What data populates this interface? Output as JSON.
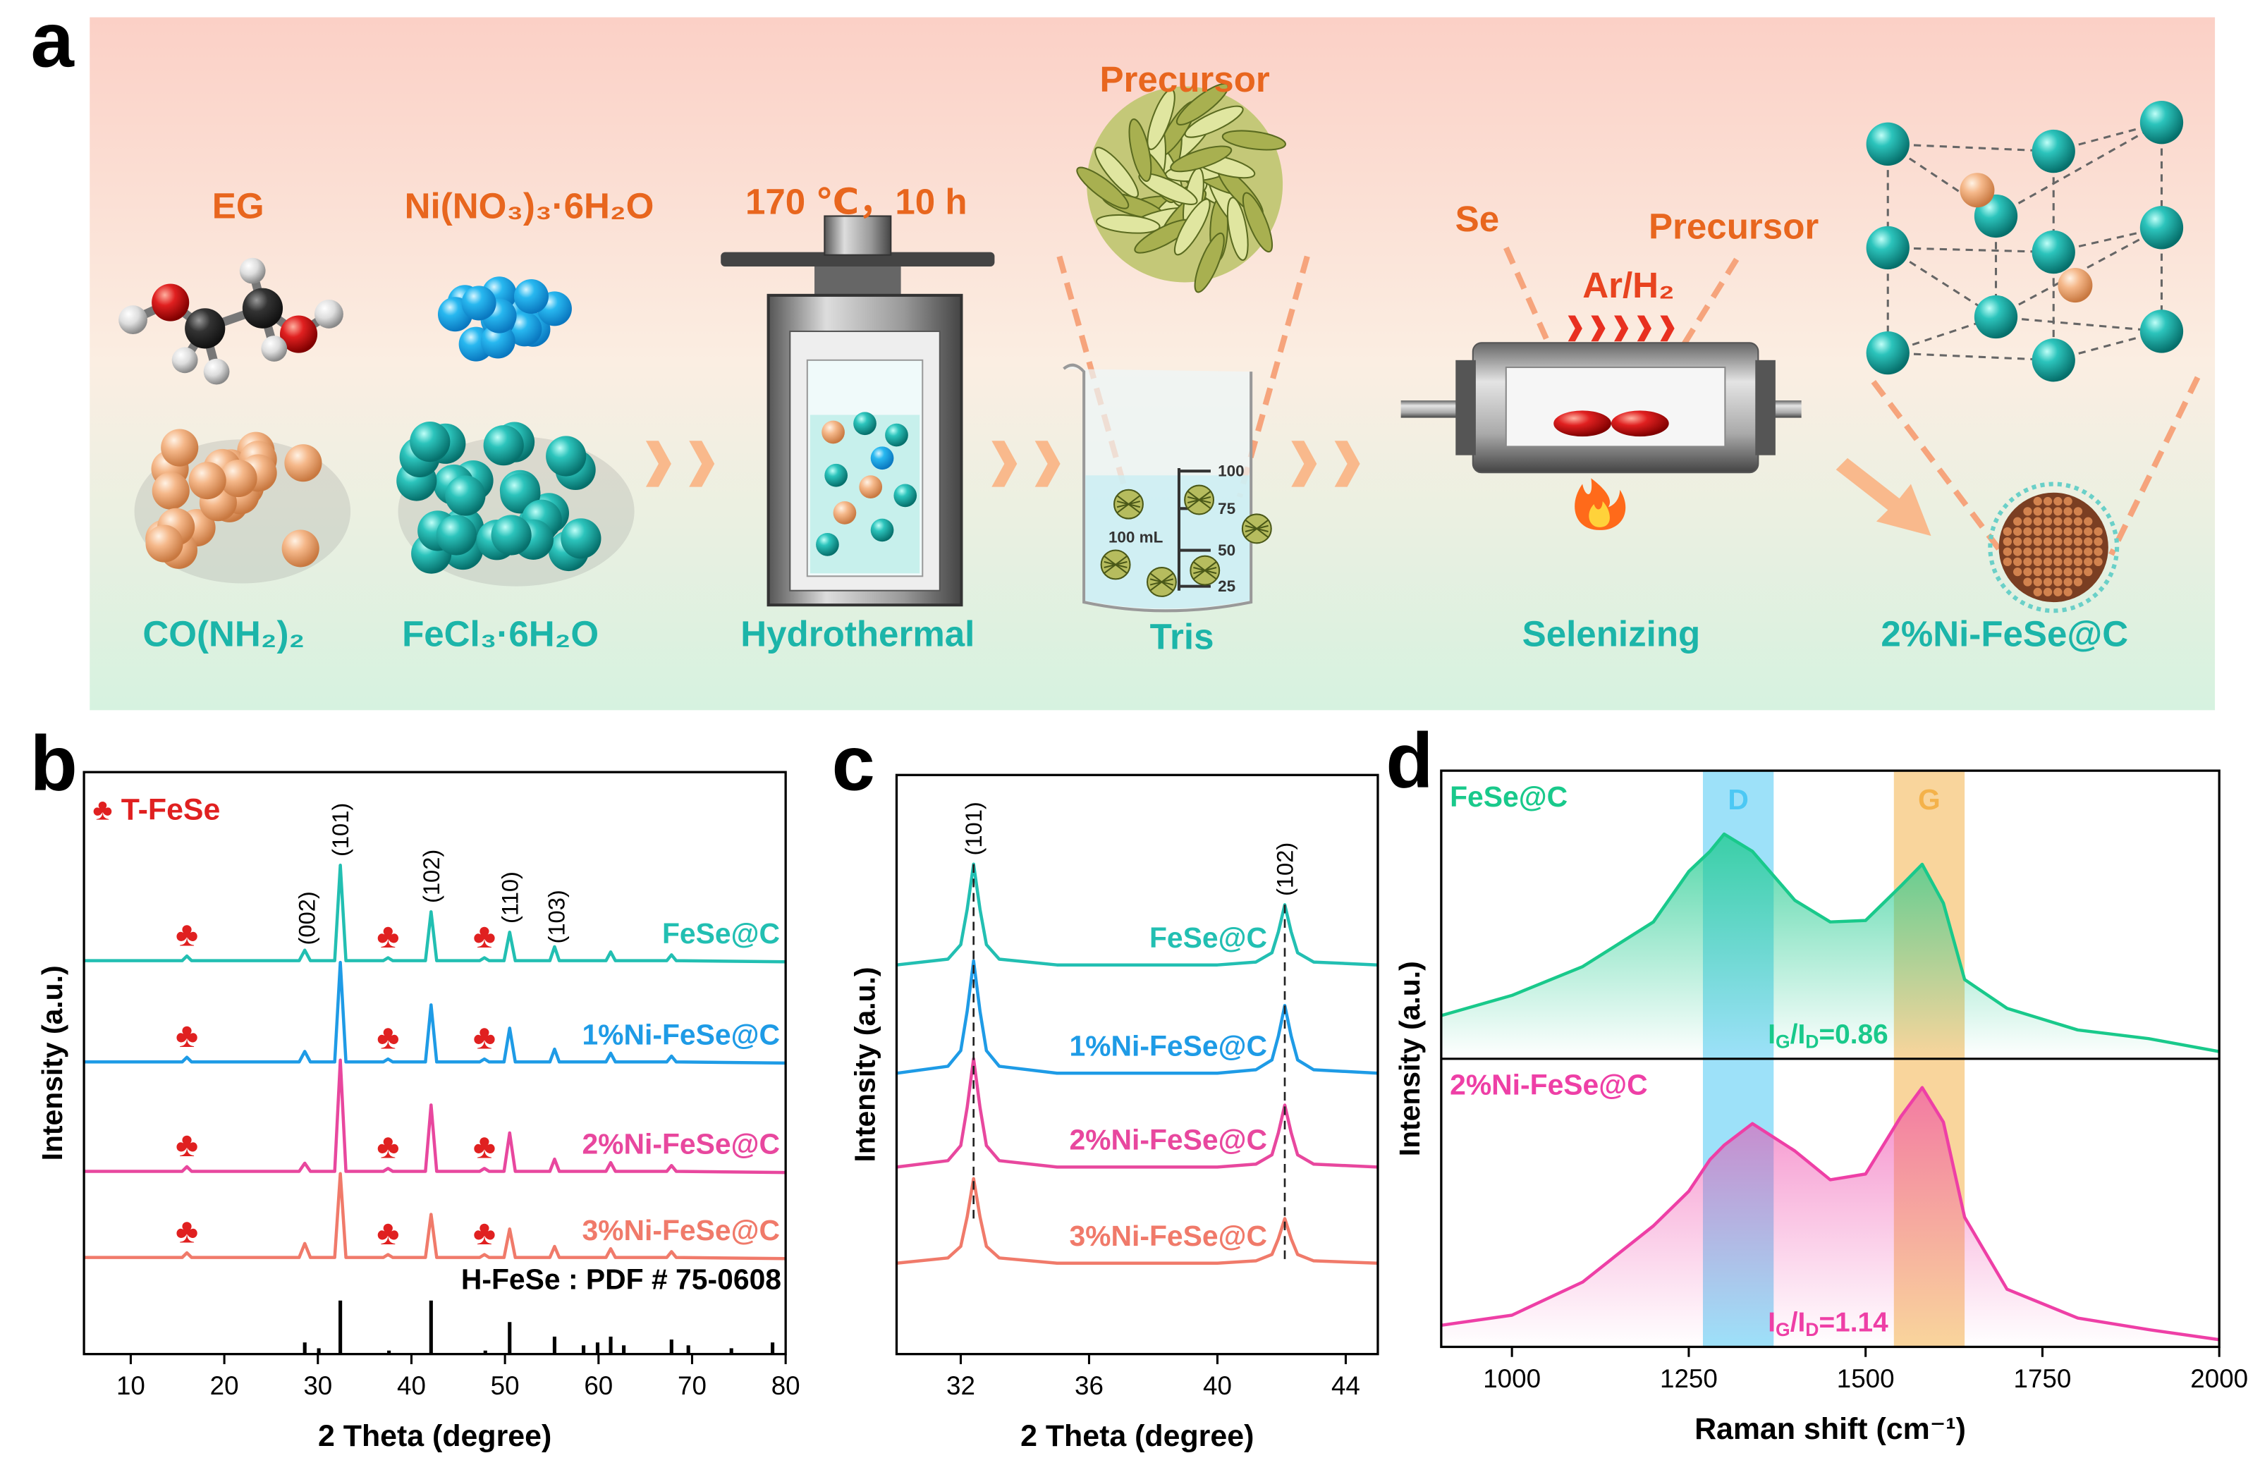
{
  "panels": [
    "a",
    "b",
    "c",
    "d"
  ],
  "scheme": {
    "eg": "EG",
    "nitrate": "Ni(NO₃)₃·6H₂O",
    "condition": "170 ℃，10 h",
    "precursor_top": "Precursor",
    "se": "Se",
    "precursor_right": "Precursor",
    "gas": "Ar/H₂",
    "urea": "CO(NH₂)₂",
    "ferric": "FeCl₃·6H₂O",
    "step1": "Hydrothermal",
    "step2": "Tris",
    "step3": "Selenizing",
    "product": "2%Ni-FeSe@C",
    "beaker_volume": "100 mL",
    "beaker_marks": [
      "100",
      "75",
      "50",
      "25"
    ]
  },
  "chart_data": [
    {
      "type": "line",
      "xlabel": "2 Theta (degree)",
      "ylabel": "Intensity (a.u.)",
      "xlim": [
        5,
        80
      ],
      "xticks": [
        10,
        20,
        30,
        40,
        50,
        60,
        70,
        80
      ],
      "ylim": [
        0,
        100
      ],
      "legend": {
        "symbol": "♣",
        "label": "T-FeSe",
        "x": [
          16,
          37.5,
          47.8
        ]
      },
      "x": [
        5,
        15.5,
        16,
        16.5,
        28,
        28.6,
        29.2,
        31.8,
        32.4,
        33,
        37,
        37.5,
        38,
        41.5,
        42.1,
        42.7,
        47.3,
        47.8,
        48.3,
        49.9,
        50.5,
        51.1,
        54.8,
        55.3,
        55.8,
        60.8,
        61.3,
        61.8,
        67.3,
        67.8,
        68.3,
        80
      ],
      "series": [
        {
          "name": "FeSe@C",
          "color": "#22bfb2",
          "values": [
            67.6,
            67.6,
            68.4,
            67.6,
            67.6,
            69.4,
            67.6,
            67.6,
            84,
            67.6,
            67.6,
            68.1,
            67.6,
            67.6,
            76,
            67.6,
            67.6,
            68.1,
            67.6,
            67.6,
            72.5,
            67.6,
            67.6,
            70,
            67.6,
            67.6,
            69.1,
            67.6,
            67.6,
            68.6,
            67.6,
            67.4
          ]
        },
        {
          "name": "1%Ni-FeSe@C",
          "color": "#1e9be6",
          "values": [
            50.2,
            50.2,
            51,
            50.2,
            50.2,
            52,
            50.2,
            50.2,
            67.3,
            50.2,
            50.2,
            50.7,
            50.2,
            50.2,
            60,
            50.2,
            50.2,
            50.7,
            50.2,
            50.2,
            56,
            50.2,
            50.2,
            52.4,
            50.2,
            50.2,
            51.7,
            50.2,
            50.2,
            51.2,
            50.2,
            50
          ]
        },
        {
          "name": "2%Ni-FeSe@C",
          "color": "#e8479e",
          "values": [
            31.4,
            31.4,
            32.2,
            31.4,
            31.4,
            32.8,
            31.4,
            31.4,
            50.5,
            31.4,
            31.4,
            31.9,
            31.4,
            31.4,
            42.8,
            31.4,
            31.4,
            31.9,
            31.4,
            31.4,
            38,
            31.4,
            31.4,
            33.5,
            31.4,
            31.4,
            32.9,
            31.4,
            31.4,
            32.4,
            31.4,
            31.2
          ]
        },
        {
          "name": "3%Ni-FeSe@C",
          "color": "#f07a6a",
          "values": [
            16.6,
            16.6,
            17.4,
            16.6,
            16.6,
            19,
            16.6,
            16.6,
            31,
            16.6,
            16.6,
            17.1,
            16.6,
            16.6,
            24,
            16.6,
            16.6,
            17.1,
            16.6,
            16.6,
            21.5,
            16.6,
            16.6,
            18.5,
            16.6,
            16.6,
            18.1,
            16.6,
            16.6,
            17.6,
            16.6,
            16.4
          ]
        }
      ],
      "annotations": [
        {
          "text": "(002)",
          "x": 28.8
        },
        {
          "text": "(101)",
          "x": 32.4
        },
        {
          "text": "(102)",
          "x": 42.1
        },
        {
          "text": "(110)",
          "x": 50.5
        },
        {
          "text": "(103)",
          "x": 55.5
        }
      ],
      "reference": {
        "label": "H-FeSe : PDF # 75-0608",
        "x": [
          28.6,
          30.1,
          32.4,
          37.6,
          42.1,
          47.9,
          50.5,
          55.3,
          58.4,
          59.9,
          61.3,
          62.7,
          67.8,
          69.6,
          74.2,
          78.6
        ],
        "values": [
          2,
          1,
          9.2,
          0.6,
          9.2,
          0.6,
          5.5,
          3,
          1.5,
          2,
          3,
          1.5,
          2.5,
          1.5,
          1,
          2
        ]
      }
    },
    {
      "type": "line",
      "xlabel": "2 Theta (degree)",
      "ylabel": "Intensity (a.u.)",
      "xlim": [
        30,
        45
      ],
      "xticks": [
        32,
        36,
        40,
        44
      ],
      "ylim": [
        0,
        100
      ],
      "x": [
        30,
        31.6,
        32.0,
        32.2,
        32.4,
        32.6,
        32.8,
        33.2,
        35,
        37.5,
        40,
        41.2,
        41.7,
        41.9,
        42.1,
        42.3,
        42.5,
        43.0,
        45
      ],
      "series": [
        {
          "name": "FeSe@C",
          "color": "#22bfb2",
          "values": [
            67.2,
            68.2,
            70.7,
            76.8,
            84.6,
            76.8,
            70.7,
            68.2,
            67.2,
            67.2,
            67.2,
            67.7,
            69.3,
            72.9,
            77.6,
            72.9,
            69.3,
            67.7,
            67.2
          ]
        },
        {
          "name": "1%Ni-FeSe@C",
          "color": "#1e9be6",
          "values": [
            48.5,
            49.7,
            52.4,
            59.2,
            67.9,
            59.2,
            52.4,
            49.7,
            48.5,
            48.5,
            48.5,
            49.1,
            50.8,
            54.9,
            60.2,
            54.9,
            50.8,
            49.1,
            48.5
          ]
        },
        {
          "name": "2%Ni-FeSe@C",
          "color": "#e8479e",
          "values": [
            32.3,
            33.4,
            36,
            42.6,
            51,
            42.6,
            36,
            33.4,
            32.3,
            32.3,
            32.3,
            32.8,
            34.4,
            38.2,
            43,
            38.2,
            34.4,
            32.8,
            32.3
          ]
        },
        {
          "name": "3%Ni-FeSe@C",
          "color": "#f07a6a",
          "values": [
            15.7,
            16.6,
            18.6,
            23.7,
            30.3,
            23.7,
            18.6,
            16.6,
            15.7,
            15.7,
            15.7,
            16.1,
            17.2,
            19.9,
            23.4,
            19.9,
            17.2,
            16.1,
            15.7
          ]
        }
      ],
      "annotations": [
        {
          "text": "(101)",
          "x": 32.4
        },
        {
          "text": "(102)",
          "x": 42.1
        }
      ],
      "guides": [
        32.4,
        42.1
      ]
    },
    {
      "type": "line",
      "xlabel": "Raman shift (cm⁻¹)",
      "ylabel": "Intensity (a.u.)",
      "xlim": [
        900,
        2000
      ],
      "xticks": [
        1000,
        1250,
        1500,
        1750,
        2000
      ],
      "ylim": [
        0,
        100
      ],
      "fill": true,
      "bands": [
        {
          "label": "D",
          "range": [
            1270,
            1370
          ],
          "color": "#4cc8f4"
        },
        {
          "label": "G",
          "range": [
            1540,
            1640
          ],
          "color": "#f4b24a"
        }
      ],
      "x": [
        900,
        1000,
        1100,
        1200,
        1250,
        1280,
        1300,
        1340,
        1400,
        1450,
        1500,
        1550,
        1580,
        1610,
        1640,
        1700,
        1800,
        1900,
        2000
      ],
      "series": [
        {
          "name": "FeSe@C",
          "color": "#19c98b",
          "values": [
            57.5,
            61,
            66,
            73.75,
            82.5,
            86,
            89,
            86,
            77.5,
            73.75,
            74,
            80,
            83.75,
            77,
            63.75,
            58.75,
            55,
            53.5,
            51.25
          ],
          "ratio_label": [
            "I",
            "G",
            "/I",
            "D",
            "=0.86"
          ]
        },
        {
          "name": "2%Ni-FeSe@C",
          "color": "#ee3fa6",
          "values": [
            3.75,
            5.5,
            11.25,
            21,
            27,
            32.5,
            35,
            38.75,
            34,
            29,
            30,
            40,
            45,
            39,
            22.5,
            10,
            5,
            3,
            1.25
          ],
          "ratio_label": [
            "I",
            "G",
            "/I",
            "D",
            "=1.14"
          ]
        }
      ]
    }
  ]
}
